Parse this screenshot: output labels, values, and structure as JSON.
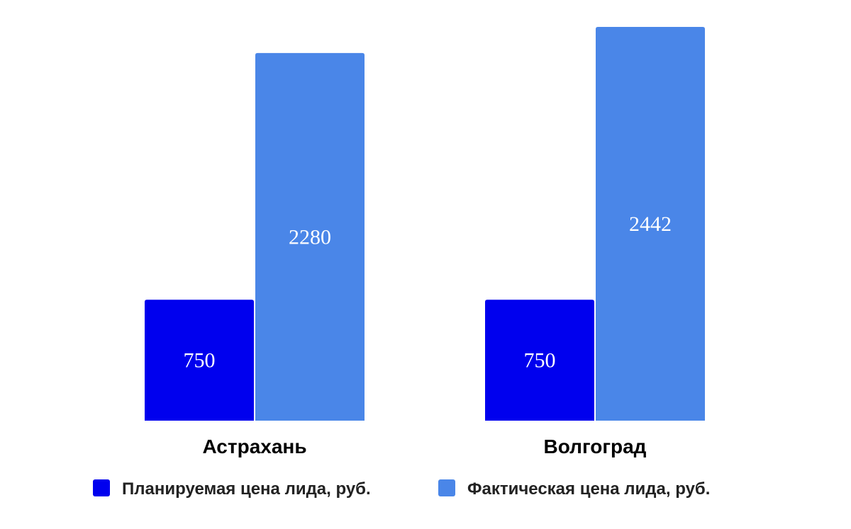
{
  "chart_data": {
    "type": "bar",
    "title": "",
    "xlabel": "",
    "ylabel": "",
    "categories": [
      "Астрахань",
      "Волгоград"
    ],
    "series": [
      {
        "name": "Планируемая цена лида, руб.",
        "values": [
          750,
          750
        ],
        "color": "#0000ee"
      },
      {
        "name": "Фактическая цена лида, руб.",
        "values": [
          2280,
          2442
        ],
        "color": "#4a86e8"
      }
    ],
    "ylim": [
      0,
      2442
    ],
    "grid": false,
    "legend_position": "bottom-center",
    "data_labels": true,
    "y_axis_visible": false
  }
}
